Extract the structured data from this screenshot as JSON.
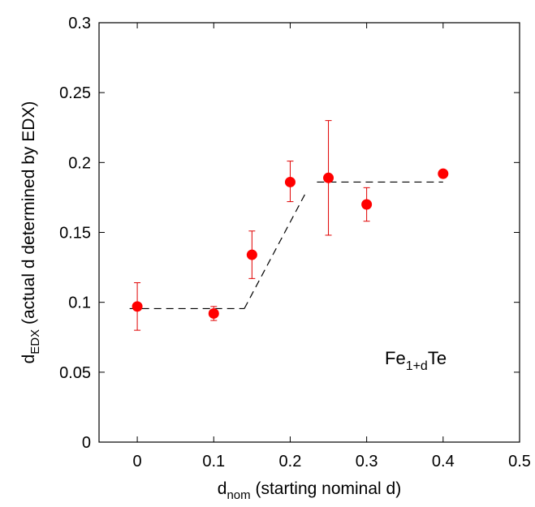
{
  "chart_data": {
    "type": "scatter",
    "xlabel_main": "d",
    "xlabel_sub": "nom",
    "xlabel_rest": " (starting nominal d)",
    "ylabel_main": "d",
    "ylabel_sub": "EDX",
    "ylabel_rest": " (actual d determined by EDX)",
    "annotation_main": "Fe",
    "annotation_sub": "1+d",
    "annotation_rest": "Te",
    "xlim": [
      -0.05,
      0.5
    ],
    "ylim": [
      0,
      0.3
    ],
    "xticks": [
      0,
      0.1,
      0.2,
      0.3,
      0.4,
      0.5
    ],
    "xtick_labels": [
      "0",
      "0.1",
      "0.2",
      "0.3",
      "0.4",
      "0.5"
    ],
    "yticks": [
      0,
      0.05,
      0.1,
      0.15,
      0.2,
      0.25,
      0.3
    ],
    "ytick_labels": [
      "0",
      "0.05",
      "0.1",
      "0.15",
      "0.2",
      "0.25",
      "0.3"
    ],
    "grid": false,
    "points": [
      {
        "x": 0.0,
        "y": 0.097,
        "err_low": 0.08,
        "err_high": 0.114
      },
      {
        "x": 0.1,
        "y": 0.092,
        "err_low": 0.087,
        "err_high": 0.097
      },
      {
        "x": 0.15,
        "y": 0.134,
        "err_low": 0.117,
        "err_high": 0.151
      },
      {
        "x": 0.2,
        "y": 0.186,
        "err_low": 0.172,
        "err_high": 0.201
      },
      {
        "x": 0.25,
        "y": 0.189,
        "err_low": 0.148,
        "err_high": 0.23
      },
      {
        "x": 0.3,
        "y": 0.17,
        "err_low": 0.158,
        "err_high": 0.182
      },
      {
        "x": 0.4,
        "y": 0.192,
        "err_low": 0.19,
        "err_high": 0.194
      }
    ],
    "guide_lines": [
      [
        [
          -0.01,
          0.0955
        ],
        [
          0.14,
          0.0955
        ]
      ],
      [
        [
          0.14,
          0.0955
        ],
        [
          0.22,
          0.178
        ]
      ],
      [
        [
          0.235,
          0.186
        ],
        [
          0.4,
          0.186
        ]
      ]
    ],
    "colors": {
      "marker": "#ff0000",
      "errorbar": "#e00000",
      "guide": "#000000",
      "axis": "#000000"
    }
  }
}
